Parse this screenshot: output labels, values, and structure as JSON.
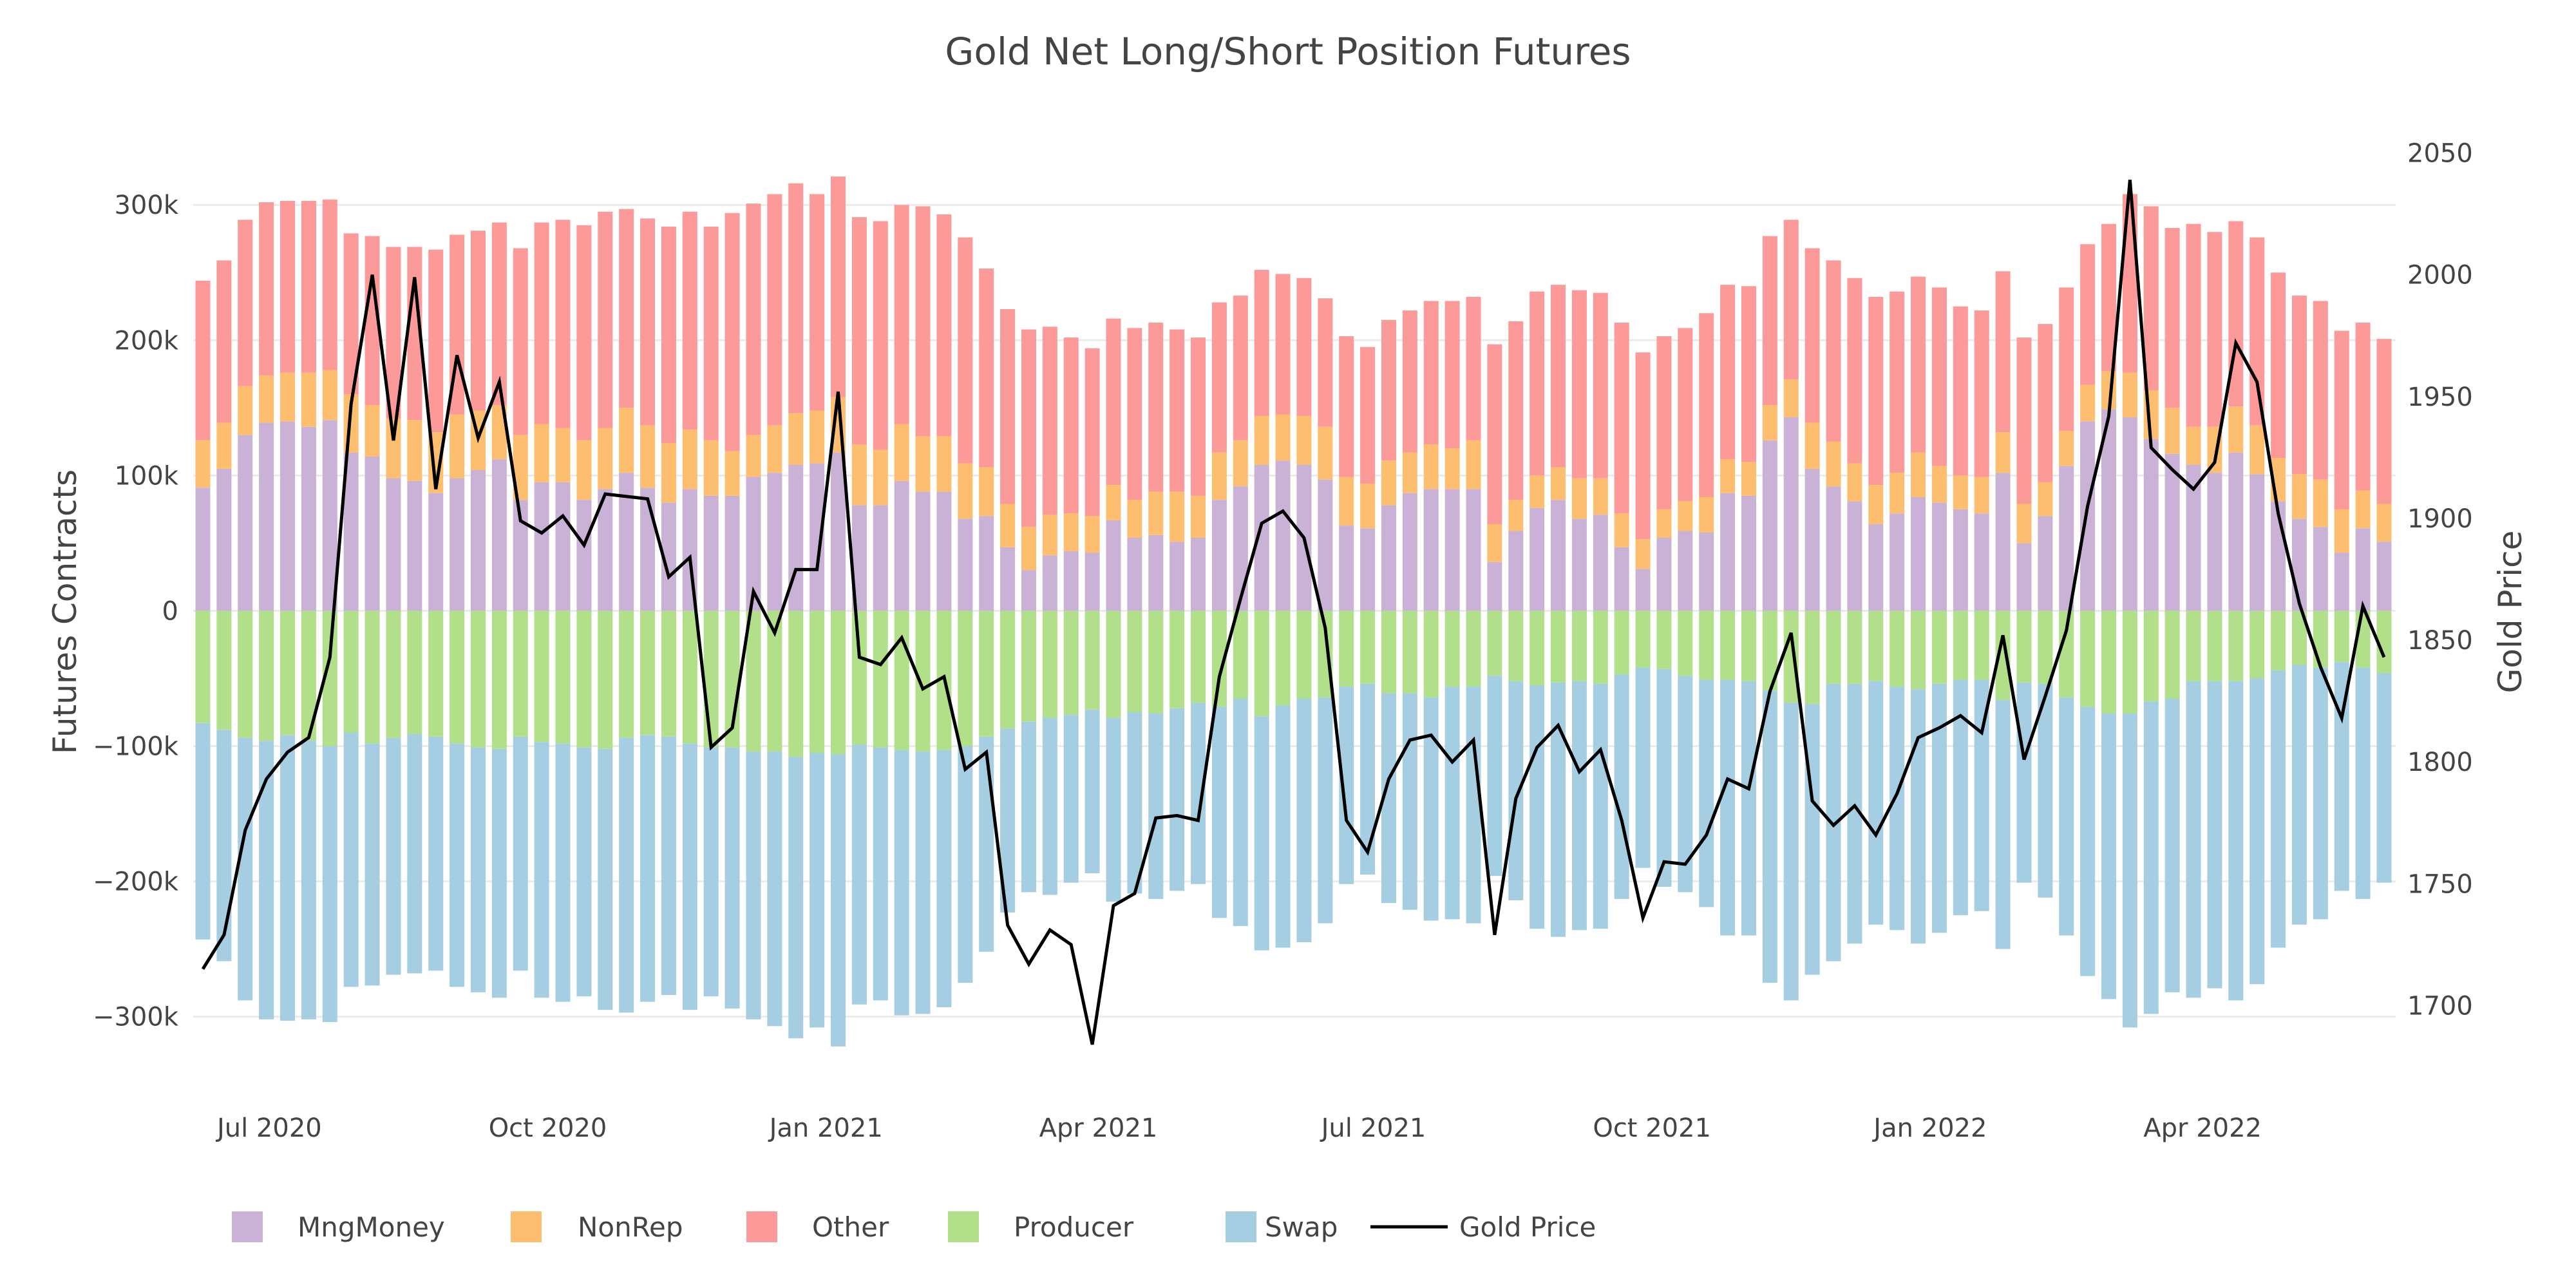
{
  "chart_data": {
    "type": "bar",
    "title": "Gold Net Long/Short Position Futures",
    "xlabel": "",
    "ylabel": "Futures Contracts",
    "y2label": "Gold Price",
    "barmode": "relative (stacked)",
    "x_start": "2020-06-09",
    "x_step_days": 7,
    "ylim": [
      -353000,
      342000
    ],
    "y2lim": [
      1666,
      2052
    ],
    "yticks": [
      -300000,
      -200000,
      -100000,
      0,
      100000,
      200000,
      300000
    ],
    "ytick_labels": [
      "−300k",
      "−200k",
      "−100k",
      "0",
      "100k",
      "200k",
      "300k"
    ],
    "y2ticks": [
      1700,
      1750,
      1800,
      1850,
      1900,
      1950,
      2000,
      2050
    ],
    "y2tick_labels": [
      "1700",
      "1750",
      "1800",
      "1850",
      "1900",
      "1950",
      "2000",
      "2050"
    ],
    "xticks": [
      "2020-07-01",
      "2020-10-01",
      "2021-01-01",
      "2021-04-01",
      "2021-07-01",
      "2021-10-01",
      "2022-01-01",
      "2022-04-01"
    ],
    "xtick_labels": [
      "Jul 2020",
      "Oct 2020",
      "Jan 2021",
      "Apr 2021",
      "Jul 2021",
      "Oct 2021",
      "Jan 2022",
      "Apr 2022"
    ],
    "grid": true,
    "legend_position": "bottom-left, horizontal",
    "series": [
      {
        "name": "MngMoney",
        "type": "bar",
        "color": "#cab2d6",
        "values_k": [
          91,
          105,
          130,
          139,
          140,
          136,
          141,
          117,
          114,
          98,
          96,
          87,
          98,
          104,
          112,
          82,
          95,
          95,
          82,
          90,
          102,
          91,
          80,
          90,
          85,
          85,
          99,
          102,
          108,
          109,
          117,
          78,
          78,
          96,
          88,
          88,
          68,
          70,
          47,
          30,
          41,
          44,
          43,
          67,
          54,
          56,
          51,
          54,
          82,
          92,
          108,
          111,
          108,
          97,
          63,
          61,
          78,
          87,
          90,
          90,
          90,
          36,
          59,
          76,
          82,
          68,
          71,
          47,
          31,
          54,
          59,
          58,
          87,
          85,
          126,
          143,
          105,
          92,
          81,
          64,
          72,
          84,
          80,
          75,
          72,
          102,
          50,
          70,
          107,
          140,
          149,
          143,
          127,
          116,
          108,
          102,
          117,
          101,
          81,
          68,
          62,
          43,
          61,
          51
        ]
      },
      {
        "name": "NonRep",
        "type": "bar",
        "color": "#fdbf6f",
        "values_k": [
          35,
          34,
          36,
          35,
          36,
          40,
          37,
          43,
          38,
          44,
          45,
          45,
          47,
          44,
          40,
          48,
          43,
          40,
          44,
          45,
          48,
          46,
          44,
          44,
          41,
          33,
          31,
          35,
          38,
          39,
          41,
          45,
          41,
          42,
          41,
          41,
          41,
          36,
          32,
          32,
          30,
          28,
          27,
          26,
          28,
          32,
          37,
          31,
          35,
          34,
          36,
          34,
          36,
          39,
          36,
          33,
          33,
          30,
          33,
          30,
          36,
          28,
          23,
          24,
          24,
          30,
          27,
          25,
          22,
          21,
          22,
          26,
          25,
          25,
          26,
          28,
          34,
          33,
          28,
          29,
          30,
          33,
          27,
          25,
          27,
          30,
          29,
          25,
          26,
          27,
          28,
          33,
          36,
          34,
          28,
          34,
          34,
          36,
          32,
          33,
          35,
          32,
          28,
          28
        ]
      },
      {
        "name": "Other",
        "type": "bar",
        "color": "#fb9a99",
        "values_k": [
          118,
          120,
          123,
          128,
          127,
          127,
          126,
          119,
          125,
          127,
          128,
          135,
          133,
          133,
          135,
          138,
          149,
          154,
          159,
          160,
          147,
          153,
          160,
          161,
          158,
          176,
          171,
          171,
          170,
          160,
          163,
          168,
          169,
          162,
          170,
          164,
          167,
          147,
          144,
          146,
          139,
          130,
          124,
          123,
          127,
          125,
          120,
          117,
          111,
          107,
          108,
          104,
          102,
          95,
          104,
          101,
          104,
          105,
          106,
          109,
          106,
          133,
          132,
          136,
          135,
          139,
          137,
          141,
          138,
          128,
          128,
          136,
          129,
          130,
          125,
          118,
          129,
          134,
          137,
          139,
          134,
          130,
          132,
          125,
          123,
          119,
          123,
          117,
          106,
          104,
          109,
          132,
          136,
          133,
          150,
          144,
          137,
          139,
          137,
          132,
          132,
          132,
          124,
          122
        ]
      },
      {
        "name": "Producer",
        "type": "bar",
        "color": "#b2df8a",
        "values_k": [
          -83,
          -88,
          -94,
          -96,
          -92,
          -96,
          -100,
          -90,
          -98,
          -94,
          -91,
          -93,
          -98,
          -101,
          -102,
          -93,
          -97,
          -98,
          -101,
          -102,
          -94,
          -92,
          -93,
          -98,
          -101,
          -101,
          -104,
          -104,
          -108,
          -105,
          -106,
          -99,
          -101,
          -103,
          -104,
          -103,
          -100,
          -93,
          -87,
          -82,
          -79,
          -77,
          -73,
          -79,
          -75,
          -76,
          -72,
          -68,
          -71,
          -65,
          -78,
          -70,
          -65,
          -64,
          -56,
          -54,
          -61,
          -61,
          -64,
          -56,
          -56,
          -48,
          -52,
          -55,
          -53,
          -52,
          -54,
          -47,
          -42,
          -43,
          -48,
          -51,
          -51,
          -52,
          -59,
          -68,
          -69,
          -54,
          -54,
          -52,
          -56,
          -58,
          -54,
          -51,
          -51,
          -66,
          -53,
          -54,
          -64,
          -71,
          -76,
          -76,
          -67,
          -65,
          -52,
          -52,
          -52,
          -50,
          -44,
          -40,
          -42,
          -38,
          -42,
          -46
        ]
      },
      {
        "name": "Swap",
        "type": "bar",
        "color": "#a6cee3",
        "values_k": [
          -160,
          -171,
          -194,
          -206,
          -211,
          -206,
          -204,
          -188,
          -179,
          -175,
          -177,
          -173,
          -180,
          -181,
          -184,
          -173,
          -189,
          -191,
          -184,
          -193,
          -203,
          -197,
          -191,
          -197,
          -184,
          -193,
          -198,
          -203,
          -208,
          -203,
          -216,
          -192,
          -187,
          -196,
          -194,
          -190,
          -175,
          -159,
          -136,
          -126,
          -131,
          -124,
          -121,
          -136,
          -134,
          -137,
          -135,
          -134,
          -156,
          -168,
          -173,
          -179,
          -180,
          -167,
          -146,
          -141,
          -155,
          -160,
          -165,
          -172,
          -175,
          -148,
          -162,
          -180,
          -188,
          -184,
          -181,
          -166,
          -148,
          -161,
          -160,
          -168,
          -189,
          -188,
          -216,
          -220,
          -200,
          -205,
          -192,
          -180,
          -180,
          -188,
          -184,
          -174,
          -171,
          -184,
          -148,
          -158,
          -176,
          -199,
          -211,
          -232,
          -231,
          -217,
          -234,
          -227,
          -236,
          -226,
          -205,
          -192,
          -186,
          -169,
          -171,
          -155
        ]
      },
      {
        "name": "Gold Price",
        "type": "line",
        "axis": "y2",
        "color": "#000000",
        "values": [
          1715,
          1729,
          1772,
          1793,
          1804,
          1810,
          1843,
          1947,
          2000,
          1932,
          1999,
          1912,
          1967,
          1933,
          1956,
          1899,
          1894,
          1901,
          1889,
          1910,
          1909,
          1908,
          1876,
          1884,
          1806,
          1814,
          1870,
          1853,
          1879,
          1879,
          1952,
          1843,
          1840,
          1851,
          1830,
          1835,
          1797,
          1804,
          1733,
          1717,
          1731,
          1725,
          1684,
          1741,
          1746,
          1777,
          1778,
          1776,
          1835,
          1867,
          1898,
          1903,
          1892,
          1855,
          1776,
          1763,
          1793,
          1809,
          1811,
          1800,
          1809,
          1729,
          1785,
          1806,
          1815,
          1796,
          1805,
          1776,
          1736,
          1759,
          1758,
          1770,
          1793,
          1789,
          1829,
          1853,
          1784,
          1774,
          1782,
          1770,
          1787,
          1810,
          1814,
          1819,
          1812,
          1852,
          1801,
          1827,
          1854,
          1905,
          1942,
          2039,
          1929,
          1920,
          1912,
          1923,
          1972,
          1956,
          1902,
          1865,
          1839,
          1818,
          1864,
          1843
        ]
      }
    ]
  }
}
